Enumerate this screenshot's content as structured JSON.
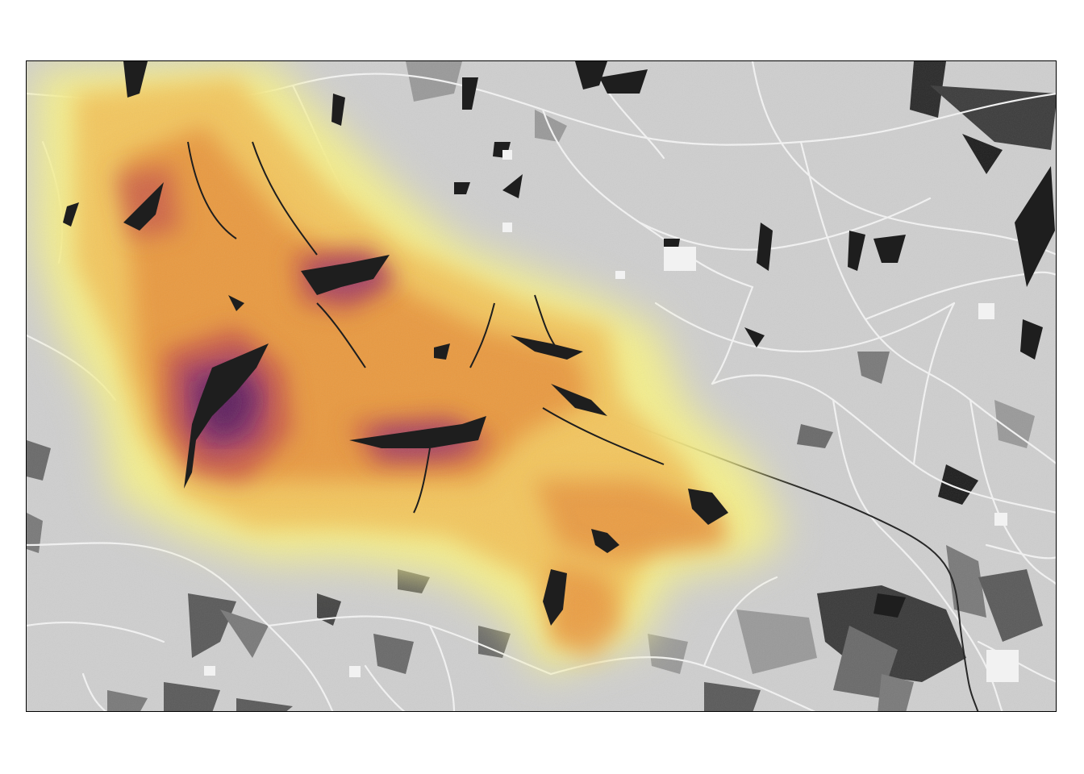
{
  "map": {
    "background_color": "#cfcfcf",
    "road_color": "#f4f4f4",
    "frame_color": "#000000",
    "water_color": "#1e1e1e",
    "terrain_colors": [
      "#5a5a5a",
      "#7a7a7a",
      "#9a9a9a",
      "#444444"
    ],
    "heat_palette": [
      "#f7f18a",
      "#f2c45c",
      "#e8953e",
      "#c95a4a",
      "#9a3d6e",
      "#5a1f5e"
    ],
    "legend_visible": false,
    "axes_visible": false
  }
}
